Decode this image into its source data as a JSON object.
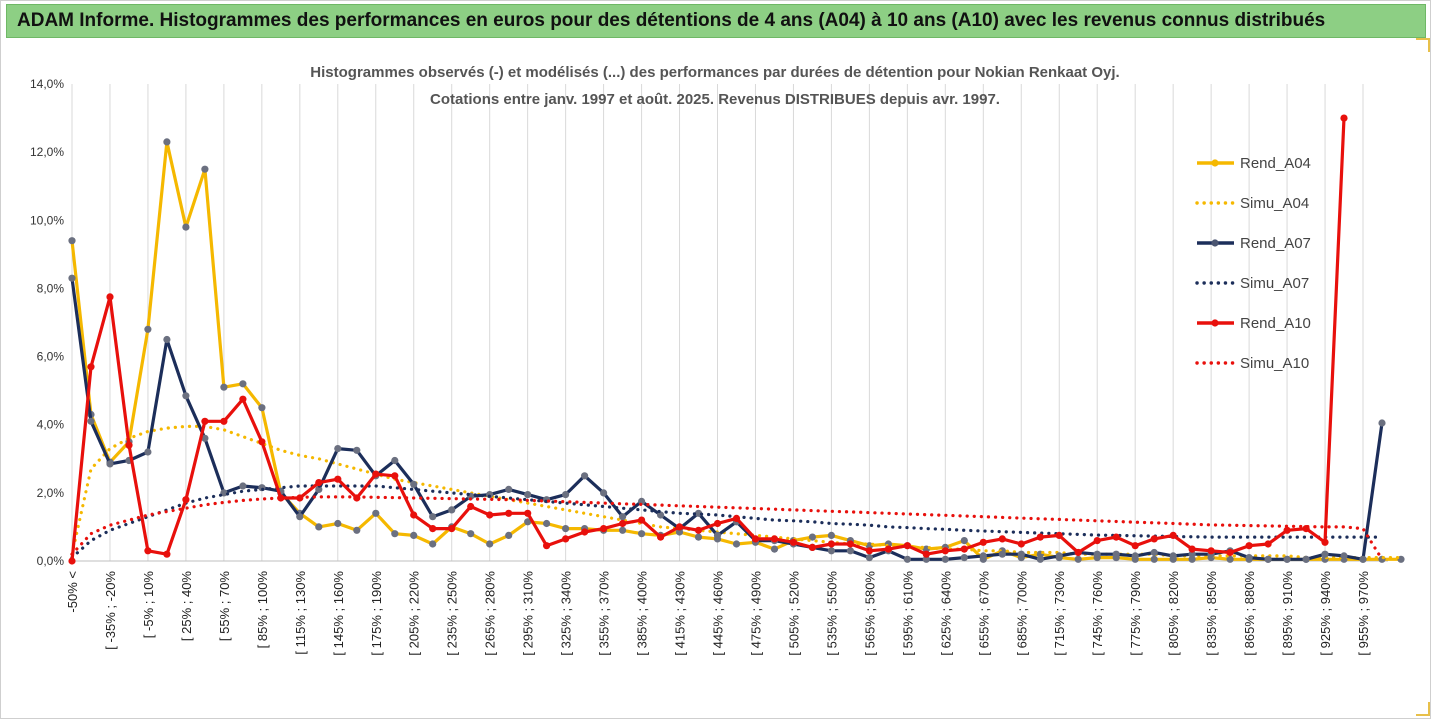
{
  "header": {
    "title": "ADAM Informe. Histogrammes des performances en euros pour des détentions de 4 ans (A04) à 10 ans (A10) avec les revenus connus distribués"
  },
  "chart_data": {
    "type": "line",
    "title": "Histogrammes observés (-) et modélisés (...) des performances par durées de détention pour Nokian Renkaat Oyj.",
    "subtitle": "Cotations entre janv. 1997 et août. 2025. Revenus DISTRIBUES depuis avr. 1997.",
    "ylim": [
      0,
      14
    ],
    "y_ticks": [
      "0,0%",
      "2,0%",
      "4,0%",
      "6,0%",
      "8,0%",
      "10,0%",
      "12,0%",
      "14,0%"
    ],
    "grid": "vertical",
    "legend_position": "right",
    "x_tick_labels": [
      "-50% <",
      "[ -35% ; -20%",
      "[ -5% ; 10%",
      "[ 25% ; 40%",
      "[ 55% ; 70%",
      "[ 85% ; 100%",
      "[ 115% ; 130%",
      "[ 145% ; 160%",
      "[ 175% ; 190%",
      "[ 205% ; 220%",
      "[ 235% ; 250%",
      "[ 265% ; 280%",
      "[ 295% ; 310%",
      "[ 325% ; 340%",
      "[ 355% ; 370%",
      "[ 385% ; 400%",
      "[ 415% ; 430%",
      "[ 445% ; 460%",
      "[ 475% ; 490%",
      "[ 505% ; 520%",
      "[ 535% ; 550%",
      "[ 565% ; 580%",
      "[ 595% ; 610%",
      "[ 625% ; 640%",
      "[ 655% ; 670%",
      "[ 685% ; 700%",
      "[ 715% ; 730%",
      "[ 745% ; 760%",
      "[ 775% ; 790%",
      "[ 805% ; 820%",
      "[ 835% ; 850%",
      "[ 865% ; 880%",
      "[ 895% ; 910%",
      "[ 925% ; 940%",
      "[ 955% ; 970%"
    ],
    "series": [
      {
        "name": "Rend_A04",
        "color": "#f5b800",
        "style": "solid",
        "values": [
          9.4,
          4.3,
          2.9,
          3.5,
          6.8,
          12.3,
          9.8,
          11.5,
          5.1,
          5.2,
          4.5,
          2.0,
          1.4,
          1.0,
          1.1,
          0.9,
          1.4,
          0.8,
          0.75,
          0.5,
          1.0,
          0.8,
          0.5,
          0.75,
          1.15,
          1.1,
          0.95,
          0.95,
          0.9,
          0.9,
          0.8,
          0.75,
          0.85,
          0.7,
          0.65,
          0.5,
          0.55,
          0.35,
          0.6,
          0.7,
          0.75,
          0.6,
          0.45,
          0.5,
          0.45,
          0.35,
          0.4,
          0.6,
          0.05,
          0.3,
          0.1,
          0.2,
          0.1,
          0.05,
          0.1,
          0.1,
          0.05,
          0.05,
          0.05,
          0.05,
          0.1,
          0.05,
          0.05,
          0.05,
          0.05,
          0.05,
          0.05,
          0.05,
          0.05,
          0.05,
          0.05
        ]
      },
      {
        "name": "Simu_A04",
        "color": "#f5b800",
        "style": "dotted",
        "values": [
          0.2,
          2.7,
          3.3,
          3.6,
          3.8,
          3.9,
          3.95,
          3.95,
          3.85,
          3.65,
          3.45,
          3.25,
          3.1,
          3.0,
          2.85,
          2.7,
          2.55,
          2.4,
          2.3,
          2.2,
          2.1,
          2.0,
          1.9,
          1.8,
          1.7,
          1.6,
          1.5,
          1.4,
          1.3,
          1.2,
          1.1,
          1.0,
          0.95,
          0.9,
          0.85,
          0.8,
          0.75,
          0.7,
          0.65,
          0.6,
          0.55,
          0.5,
          0.5,
          0.45,
          0.4,
          0.4,
          0.35,
          0.35,
          0.3,
          0.3,
          0.25,
          0.25,
          0.25,
          0.2,
          0.2,
          0.2,
          0.2,
          0.2,
          0.15,
          0.15,
          0.15,
          0.15,
          0.15,
          0.15,
          0.15,
          0.1,
          0.1,
          0.1,
          0.1,
          0.1,
          0.1
        ]
      },
      {
        "name": "Rend_A07",
        "color": "#1c2e5a",
        "style": "solid",
        "values": [
          8.3,
          4.1,
          2.85,
          2.95,
          3.2,
          6.5,
          4.85,
          3.6,
          2.0,
          2.2,
          2.15,
          2.05,
          1.3,
          2.1,
          3.3,
          3.25,
          2.5,
          2.95,
          2.25,
          1.3,
          1.5,
          1.9,
          1.95,
          2.1,
          1.95,
          1.8,
          1.95,
          2.5,
          2.0,
          1.3,
          1.75,
          1.35,
          0.95,
          1.4,
          0.75,
          1.15,
          0.6,
          0.6,
          0.5,
          0.4,
          0.3,
          0.3,
          0.1,
          0.3,
          0.05,
          0.05,
          0.05,
          0.1,
          0.15,
          0.2,
          0.2,
          0.05,
          0.15,
          0.25,
          0.2,
          0.2,
          0.15,
          0.25,
          0.15,
          0.2,
          0.2,
          0.3,
          0.1,
          0.05,
          0.05,
          0.05,
          0.2,
          0.15,
          0.05,
          4.05
        ]
      },
      {
        "name": "Simu_A07",
        "color": "#1c2e5a",
        "style": "dotted",
        "values": [
          0.1,
          0.6,
          0.9,
          1.1,
          1.3,
          1.5,
          1.7,
          1.85,
          1.95,
          2.05,
          2.1,
          2.15,
          2.2,
          2.2,
          2.2,
          2.2,
          2.2,
          2.15,
          2.1,
          2.05,
          2.0,
          1.95,
          1.9,
          1.85,
          1.8,
          1.75,
          1.7,
          1.65,
          1.6,
          1.55,
          1.5,
          1.45,
          1.4,
          1.38,
          1.35,
          1.3,
          1.25,
          1.2,
          1.18,
          1.15,
          1.1,
          1.08,
          1.05,
          1.0,
          0.98,
          0.95,
          0.93,
          0.9,
          0.88,
          0.86,
          0.84,
          0.82,
          0.8,
          0.78,
          0.76,
          0.75,
          0.74,
          0.73,
          0.72,
          0.71,
          0.7,
          0.7,
          0.7,
          0.7,
          0.7,
          0.7,
          0.7,
          0.7,
          0.7,
          0.7
        ]
      },
      {
        "name": "Rend_A10",
        "color": "#e8100c",
        "style": "solid",
        "values": [
          0.0,
          5.7,
          7.75,
          3.4,
          0.3,
          0.2,
          1.8,
          4.1,
          4.1,
          4.75,
          3.5,
          1.85,
          1.85,
          2.3,
          2.4,
          1.85,
          2.55,
          2.5,
          1.35,
          0.95,
          0.95,
          1.6,
          1.35,
          1.4,
          1.4,
          0.45,
          0.65,
          0.85,
          0.95,
          1.1,
          1.2,
          0.7,
          1.0,
          0.9,
          1.1,
          1.25,
          0.65,
          0.65,
          0.55,
          0.4,
          0.5,
          0.5,
          0.3,
          0.35,
          0.45,
          0.2,
          0.3,
          0.35,
          0.55,
          0.65,
          0.5,
          0.7,
          0.75,
          0.25,
          0.6,
          0.7,
          0.45,
          0.65,
          0.75,
          0.35,
          0.3,
          0.25,
          0.45,
          0.5,
          0.9,
          0.95,
          0.55,
          13.0
        ]
      },
      {
        "name": "Simu_A10",
        "color": "#e8100c",
        "style": "dotted",
        "values": [
          0.2,
          0.8,
          1.05,
          1.2,
          1.35,
          1.45,
          1.55,
          1.65,
          1.72,
          1.78,
          1.82,
          1.85,
          1.87,
          1.88,
          1.88,
          1.88,
          1.87,
          1.86,
          1.85,
          1.84,
          1.83,
          1.82,
          1.81,
          1.8,
          1.78,
          1.76,
          1.74,
          1.72,
          1.7,
          1.68,
          1.66,
          1.64,
          1.62,
          1.6,
          1.58,
          1.56,
          1.54,
          1.52,
          1.5,
          1.48,
          1.46,
          1.44,
          1.42,
          1.4,
          1.38,
          1.36,
          1.34,
          1.32,
          1.3,
          1.28,
          1.26,
          1.24,
          1.22,
          1.2,
          1.18,
          1.16,
          1.14,
          1.12,
          1.1,
          1.08,
          1.06,
          1.05,
          1.04,
          1.03,
          1.02,
          1.01,
          1.0,
          1.0,
          0.95,
          0.05
        ]
      }
    ]
  }
}
